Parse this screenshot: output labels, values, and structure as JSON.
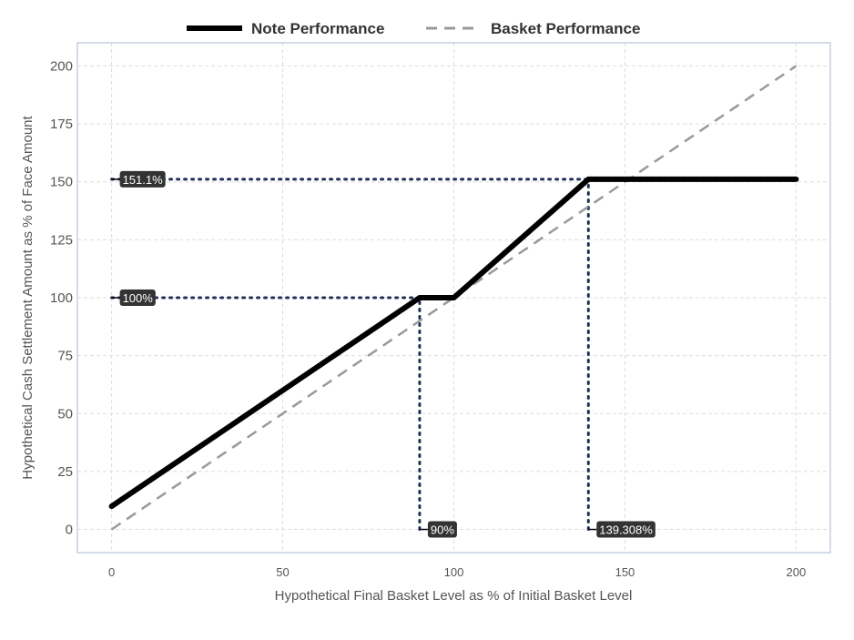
{
  "chart_data": {
    "type": "line",
    "title": "",
    "xlabel": "Hypothetical Final Basket Level as % of Initial Basket Level",
    "ylabel": "Hypothetical Cash Settlement Amount as % of Face Amount",
    "xlim": [
      -10,
      210
    ],
    "ylim": [
      -10,
      210
    ],
    "xticks": [
      0,
      50,
      100,
      150,
      200
    ],
    "yticks": [
      0,
      25,
      50,
      75,
      100,
      125,
      150,
      175,
      200
    ],
    "xtick_labels": [
      "0",
      "50",
      "100",
      "150",
      "200"
    ],
    "ytick_labels": [
      "0",
      "25",
      "50",
      "75",
      "100",
      "125",
      "150",
      "175",
      "200"
    ],
    "grid": true,
    "legend_position": "top",
    "series": [
      {
        "name": "Note Performance",
        "style": "solid",
        "color": "#000000",
        "x": [
          0,
          90,
          100,
          139.308,
          200
        ],
        "y": [
          10,
          100,
          100,
          151.1,
          151.1
        ]
      },
      {
        "name": "Basket Performance",
        "style": "dashed",
        "color": "#999999",
        "x": [
          0,
          200
        ],
        "y": [
          0,
          200
        ]
      }
    ],
    "annotations": [
      {
        "label": "151.1%",
        "axis": "y",
        "value": 151.1,
        "to_x": 139.308
      },
      {
        "label": "100%",
        "axis": "y",
        "value": 100,
        "to_x": 90
      },
      {
        "label": "90%",
        "axis": "x",
        "value": 90,
        "to_y": 100
      },
      {
        "label": "139.308%",
        "axis": "x",
        "value": 139.308,
        "to_y": 151.1
      }
    ],
    "colors": {
      "guide": "#1f2f5a",
      "label_bg": "#333333",
      "grid": "#dddddd",
      "frame": "#c5d0e0"
    }
  }
}
